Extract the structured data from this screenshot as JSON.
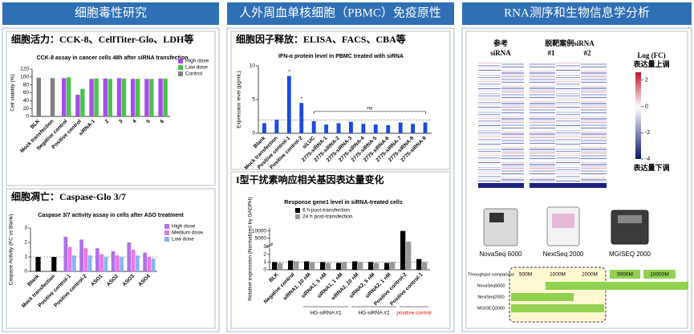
{
  "panels": [
    {
      "title": "细胞毒性研究",
      "sections": [
        "细胞活力：CCK-8、CellTiter-Glo、LDH等",
        "细胞凋亡：Caspase-Glo 3/7"
      ]
    },
    {
      "title": "人外周血单核细胞（PBMC）免疫原性",
      "sections": [
        "细胞因子释放：ELISA、FACS、CBA等",
        "I型干扰素响应相关基因表达量变化"
      ]
    },
    {
      "title": "RNA测序和生物信息学分析"
    }
  ],
  "chart_data": [
    {
      "type": "bar",
      "title": "CCK-8 assay in cancer cells 48h after siRNA transfection",
      "y_label": "Cell viability (%)",
      "categories": [
        "BLK",
        "Mock transfection",
        "Negative control",
        "Positive control",
        "siRNA-1",
        "2",
        "3",
        "4",
        "5",
        "6"
      ],
      "series": [
        {
          "name": "High dose",
          "color": "#a64ee8",
          "values": [
            null,
            null,
            97,
            55,
            95,
            96,
            97,
            95,
            95,
            96
          ]
        },
        {
          "name": "Low dose",
          "color": "#4cc24c",
          "values": [
            null,
            null,
            99,
            70,
            96,
            95,
            96,
            95,
            95,
            96
          ]
        },
        {
          "name": "Control",
          "color": "#7f7f7f",
          "values": [
            98,
            97,
            null,
            null,
            null,
            null,
            null,
            null,
            null,
            null
          ]
        }
      ],
      "ylim": [
        0,
        120
      ],
      "yticks": [
        0,
        20,
        40,
        60,
        80,
        100,
        120
      ],
      "legend": "upper right"
    },
    {
      "type": "bar",
      "title": "Caspase 3/7 activity assay in cells after ASO treatment",
      "y_label": "Caspase Activity (FC vs Blank)",
      "categories": [
        "Blank",
        "Mock transfection",
        "Positive control-1",
        "Positive control-2",
        "ASO1",
        "ASO2",
        "ASO3",
        "ASO4"
      ],
      "series": [
        {
          "color": "#000000",
          "values": [
            1,
            1,
            null,
            null,
            null,
            null,
            null,
            null
          ]
        },
        {
          "name": "High dose",
          "color": "#b070e8",
          "values": [
            null,
            null,
            2.4,
            2.2,
            1.6,
            1.4,
            2.0,
            1.3
          ]
        },
        {
          "name": "Medium dose",
          "color": "#e878e8",
          "values": [
            null,
            null,
            1.7,
            1.6,
            1.2,
            1.1,
            1.5,
            1.0
          ]
        },
        {
          "name": "Low dose",
          "color": "#88b4f0",
          "values": [
            null,
            null,
            1.1,
            1.1,
            1.0,
            1.0,
            1.1,
            0.9
          ]
        }
      ],
      "ylim": [
        0,
        3
      ],
      "yticks": [
        0,
        1,
        2,
        3
      ],
      "reference_line": 1,
      "legend": "upper right"
    },
    {
      "type": "bar",
      "title": "IFN-α protein level in PBMC treated with siRNA",
      "y_label": "Expression level (pg/mL)",
      "categories": [
        "Blank",
        "Mock transfection",
        "Positive control-1",
        "Positive control-2",
        "siLUC",
        "2775-siRNA-1",
        "2775-siRNA-2",
        "2775-siRNA-3",
        "2775-siRNA-4",
        "2775-siRNA-5",
        "2775-siRNA-6",
        "2775-siRNA-7",
        "2775-siRNA-8",
        "2775-siRNA-9"
      ],
      "series": [
        {
          "color": "#1a4be0",
          "values": [
            1.5,
            2.0,
            8.5,
            4.5,
            1.8,
            1.3,
            1.5,
            1.7,
            1.4,
            1.3,
            1.2,
            1.6,
            1.4,
            1.6
          ]
        }
      ],
      "ylim": [
        0,
        10
      ],
      "yticks": [
        0,
        5,
        10
      ],
      "reference_line": 2,
      "annotations": [
        {
          "text": "*",
          "at": "Positive control-1"
        },
        {
          "text": "*",
          "at": "Positive control-2"
        },
        {
          "text": "ns",
          "from": "siLUC",
          "to": "2775-siRNA-9"
        }
      ]
    },
    {
      "type": "bar",
      "title": "Response gene1 level in siRNA-treated cells",
      "y_label": "Relative expression (Normalized by GADPH)",
      "categories": [
        "BLK",
        "Negative control",
        "siRNA1, 10 nM",
        "siRNA1, 5 nM",
        "siRNA1, 1 nM",
        "siRNA2, 10 nM",
        "siRNA2, 5 nM",
        "siRNA2, 1 nM",
        "Positive control-2",
        "Positive control-1"
      ],
      "series": [
        {
          "name": "6 h post-transfection",
          "color": "#000000",
          "values": [
            1,
            1.2,
            1.1,
            1.0,
            0.9,
            1.1,
            1.0,
            0.9,
            10000,
            1.4
          ]
        },
        {
          "name": "24 h post-transfection",
          "color": "#999999",
          "values": [
            0.9,
            1.1,
            1.0,
            0.9,
            1.0,
            1.0,
            0.9,
            1.0,
            2500,
            1.0
          ]
        }
      ],
      "ylim": [
        0,
        12000
      ],
      "ybreak": [
        3,
        1000
      ],
      "yticks": [
        0,
        1,
        2,
        3,
        5000,
        10000
      ],
      "reference_line": 1,
      "legend": "upper left",
      "group_labels": [
        {
          "text": "HG-siRNA #1",
          "from": "siRNA1, 10 nM",
          "to": "siRNA1, 1 nM",
          "color": "#000000"
        },
        {
          "text": "HG-siRNA #2",
          "from": "siRNA2, 10 nM",
          "to": "siRNA2, 1 nM",
          "color": "#000000"
        },
        {
          "text": "positive control",
          "from": "Positive control-2",
          "to": "Positive control-1",
          "color": "#ff0000"
        }
      ]
    }
  ],
  "heatmap": {
    "reference_label": [
      "参考",
      "siRNA"
    ],
    "offtarget_label": "脱靶案例siRNA",
    "offtarget_columns": [
      "#1",
      "#2"
    ],
    "colorbar_title": "Log (FC)",
    "up_label": "表达量上调",
    "down_label": "表达量下调",
    "colorbar_lim": [
      -4,
      2.6
    ],
    "colorbar_ticks": [
      2,
      0,
      -2,
      -4
    ]
  },
  "instruments": [
    "NovaSeq 6000",
    "NextSeq 2000",
    "MGISEQ 2000"
  ],
  "throughput": {
    "title": "Throughput comparison",
    "columns": [
      "500M",
      "1000M",
      "2000M",
      "5000M",
      "10000M"
    ],
    "rows": [
      "NovaSeq6000",
      "NextSeq2000",
      "MGISEQ2000"
    ]
  }
}
